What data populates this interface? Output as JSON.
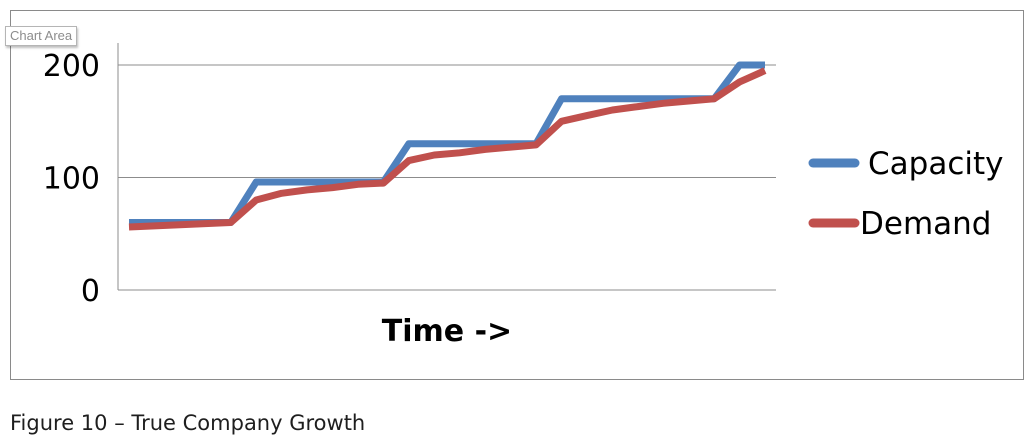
{
  "tooltip": "Chart Area",
  "caption": "Figure 10 – True Company Growth",
  "chart_data": {
    "type": "line",
    "title": "",
    "xlabel": "Time ->",
    "ylabel": "",
    "ylim": [
      0,
      200
    ],
    "yticks": [
      "0",
      "100",
      "200"
    ],
    "grid": true,
    "legend_position": "right",
    "x": [
      1,
      2,
      3,
      4,
      5,
      6,
      7,
      8,
      9,
      10,
      11,
      12,
      13,
      14,
      15,
      16,
      17,
      18,
      19,
      20,
      21,
      22,
      23,
      24,
      25,
      26
    ],
    "series": [
      {
        "name": "Capacity",
        "color": "#4f81bd",
        "values": [
          60,
          60,
          60,
          60,
          60,
          96,
          96,
          96,
          96,
          96,
          96,
          130,
          130,
          130,
          130,
          130,
          130,
          170,
          170,
          170,
          170,
          170,
          170,
          170,
          200,
          200
        ]
      },
      {
        "name": "Demand",
        "color": "#c0504d",
        "values": [
          56,
          57,
          58,
          59,
          60,
          80,
          86,
          89,
          91,
          94,
          95,
          115,
          120,
          122,
          125,
          127,
          129,
          150,
          155,
          160,
          163,
          166,
          168,
          170,
          185,
          195
        ]
      }
    ]
  }
}
